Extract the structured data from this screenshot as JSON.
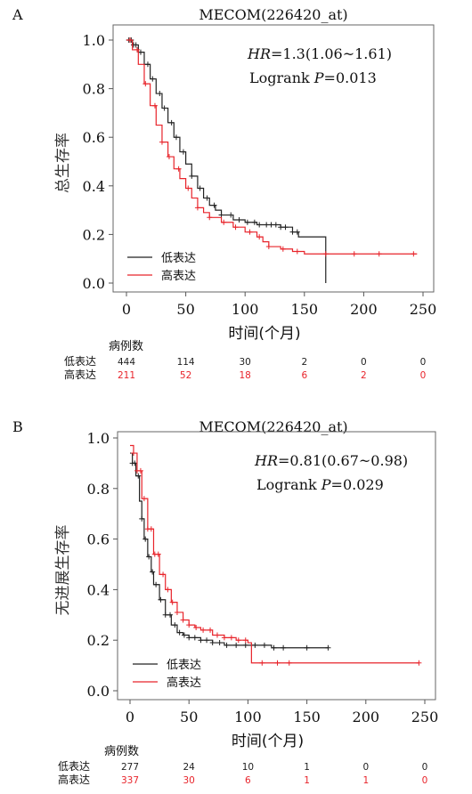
{
  "colors": {
    "low": "#222222",
    "high": "#e8242b",
    "axis": "#555555"
  },
  "chart_data": [
    {
      "type": "line",
      "panel_label": "A",
      "title": "MECOM(226420_at)",
      "xlabel": "时间(个月)",
      "ylabel": "总生存率",
      "xlim": [
        0,
        250
      ],
      "ylim": [
        0,
        1.0
      ],
      "xticks": [
        0,
        50,
        100,
        150,
        200,
        250
      ],
      "yticks": [
        0.0,
        0.2,
        0.4,
        0.6,
        0.8,
        1.0
      ],
      "ytick_labels": [
        "0.0",
        "0.2",
        "0.4",
        "0.6",
        "0.8",
        "1.0"
      ],
      "stats": {
        "hr_label": "HR",
        "hr_value": "=1.3(1.06~1.61)",
        "logrank_prefix": "Logrank ",
        "p_label": "P",
        "p_value": "=0.013"
      },
      "legend_position": "bottom-left",
      "risk_table": {
        "header": "病例数",
        "x": [
          0,
          50,
          100,
          150,
          200,
          250
        ],
        "rows": [
          {
            "name": "低表达",
            "color_key": "low",
            "values": [
              "444",
              "114",
              "30",
              "2",
              "0",
              "0"
            ]
          },
          {
            "name": "高表达",
            "color_key": "high",
            "values": [
              "211",
              "52",
              "18",
              "6",
              "2",
              "0"
            ]
          }
        ]
      },
      "series": [
        {
          "name": "低表达",
          "color_key": "low",
          "x": [
            0,
            5,
            10,
            15,
            20,
            25,
            30,
            35,
            40,
            45,
            50,
            55,
            60,
            65,
            70,
            75,
            80,
            90,
            100,
            110,
            120,
            130,
            140,
            145,
            160,
            168,
            168
          ],
          "y": [
            1.0,
            0.98,
            0.95,
            0.9,
            0.84,
            0.78,
            0.72,
            0.66,
            0.6,
            0.54,
            0.49,
            0.44,
            0.39,
            0.35,
            0.32,
            0.3,
            0.28,
            0.26,
            0.25,
            0.24,
            0.24,
            0.23,
            0.21,
            0.19,
            0.19,
            0.19,
            0.0
          ],
          "censor_x": [
            2,
            4,
            6,
            8,
            12,
            18,
            22,
            28,
            32,
            38,
            42,
            48,
            55,
            62,
            68,
            74,
            80,
            88,
            95,
            102,
            108,
            112,
            118,
            122,
            126,
            130,
            134,
            140,
            144
          ]
        },
        {
          "name": "高表达",
          "color_key": "high",
          "x": [
            0,
            5,
            10,
            15,
            20,
            25,
            30,
            35,
            40,
            45,
            50,
            55,
            60,
            65,
            70,
            80,
            90,
            100,
            110,
            115,
            120,
            130,
            140,
            150,
            175,
            245
          ],
          "y": [
            1.0,
            0.96,
            0.9,
            0.82,
            0.73,
            0.65,
            0.58,
            0.52,
            0.47,
            0.43,
            0.39,
            0.35,
            0.31,
            0.29,
            0.27,
            0.25,
            0.23,
            0.21,
            0.19,
            0.17,
            0.15,
            0.14,
            0.13,
            0.12,
            0.12,
            0.12
          ],
          "censor_x": [
            3,
            9,
            16,
            24,
            30,
            36,
            44,
            52,
            60,
            70,
            82,
            92,
            104,
            112,
            120,
            132,
            144,
            168,
            192,
            213,
            242
          ]
        }
      ]
    },
    {
      "type": "line",
      "panel_label": "B",
      "title": "MECOM(226420_at)",
      "xlabel": "时间(个月)",
      "ylabel": "无进展生存率",
      "xlim": [
        0,
        250
      ],
      "ylim": [
        0,
        1.0
      ],
      "xticks": [
        0,
        50,
        100,
        150,
        200,
        250
      ],
      "yticks": [
        0.0,
        0.2,
        0.4,
        0.6,
        0.8,
        1.0
      ],
      "ytick_labels": [
        "0.0",
        "0.2",
        "0.4",
        "0.6",
        "0.8",
        "1.0"
      ],
      "stats": {
        "hr_label": "HR",
        "hr_value": "=0.81(0.67~0.98)",
        "logrank_prefix": "Logrank ",
        "p_label": "P",
        "p_value": "=0.029"
      },
      "legend_position": "bottom-left",
      "risk_table": {
        "header": "病例数",
        "x": [
          0,
          50,
          100,
          150,
          200,
          250
        ],
        "rows": [
          {
            "name": "低表达",
            "color_key": "low",
            "values": [
              "277",
              "24",
              "10",
              "1",
              "0",
              "0"
            ]
          },
          {
            "name": "高表达",
            "color_key": "high",
            "values": [
              "337",
              "30",
              "6",
              "1",
              "1",
              "0"
            ]
          }
        ]
      },
      "series": [
        {
          "name": "低表达",
          "color_key": "low",
          "x": [
            0,
            2,
            5,
            8,
            10,
            12,
            15,
            18,
            20,
            25,
            30,
            35,
            40,
            45,
            50,
            60,
            70,
            80,
            90,
            100,
            110,
            120,
            130,
            168
          ],
          "y": [
            0.94,
            0.9,
            0.85,
            0.75,
            0.68,
            0.6,
            0.53,
            0.47,
            0.42,
            0.36,
            0.3,
            0.26,
            0.23,
            0.22,
            0.21,
            0.2,
            0.19,
            0.18,
            0.18,
            0.18,
            0.18,
            0.17,
            0.17,
            0.17
          ],
          "censor_x": [
            2,
            4,
            7,
            10,
            13,
            16,
            19,
            22,
            26,
            30,
            34,
            38,
            42,
            46,
            50,
            55,
            60,
            65,
            70,
            76,
            82,
            90,
            98,
            106,
            114,
            122,
            130,
            150,
            168
          ]
        },
        {
          "name": "高表达",
          "color_key": "high",
          "x": [
            0,
            3,
            6,
            10,
            15,
            20,
            25,
            30,
            35,
            40,
            45,
            50,
            55,
            60,
            70,
            80,
            90,
            100,
            103,
            110,
            120,
            130,
            150,
            200,
            245
          ],
          "y": [
            0.97,
            0.94,
            0.87,
            0.76,
            0.64,
            0.54,
            0.46,
            0.4,
            0.35,
            0.31,
            0.28,
            0.26,
            0.25,
            0.24,
            0.22,
            0.21,
            0.2,
            0.19,
            0.11,
            0.11,
            0.11,
            0.11,
            0.11,
            0.11,
            0.11
          ],
          "censor_x": [
            3,
            6,
            9,
            12,
            15,
            18,
            21,
            24,
            28,
            32,
            36,
            40,
            45,
            50,
            56,
            62,
            68,
            74,
            80,
            86,
            92,
            98,
            112,
            125,
            135,
            245
          ]
        }
      ]
    }
  ]
}
